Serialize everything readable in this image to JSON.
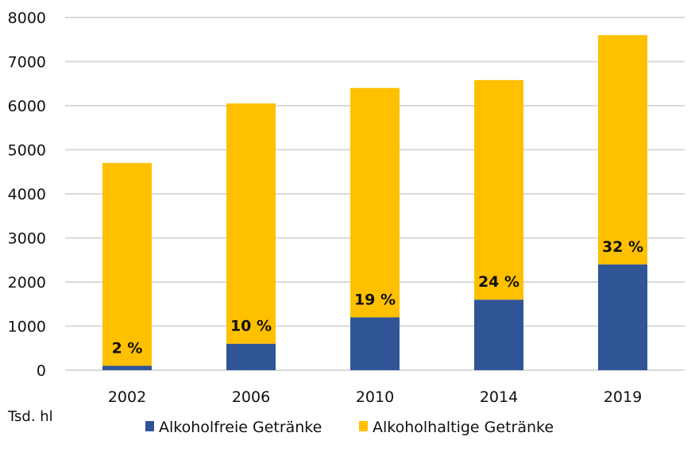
{
  "chart_data": {
    "type": "bar",
    "stacked": true,
    "title": "",
    "xlabel": "",
    "ylabel": "",
    "unit_label": "Tsd. hl",
    "ylim": [
      0,
      8000
    ],
    "yticks": [
      0,
      1000,
      2000,
      3000,
      4000,
      5000,
      6000,
      7000,
      8000
    ],
    "grid": true,
    "legend_position": "bottom",
    "categories": [
      "2002",
      "2006",
      "2010",
      "2014",
      "2019"
    ],
    "series": [
      {
        "name": "Alkoholfreie Getränke",
        "color": "#2F5597",
        "values": [
          100,
          600,
          1200,
          1600,
          2400
        ]
      },
      {
        "name": "Alkoholhaltige Getränke",
        "color": "#FFC000",
        "values": [
          4600,
          5450,
          5200,
          4980,
          5200
        ]
      }
    ],
    "data_labels": [
      "2 %",
      "10 %",
      "19 %",
      "24 %",
      "32 %"
    ]
  }
}
